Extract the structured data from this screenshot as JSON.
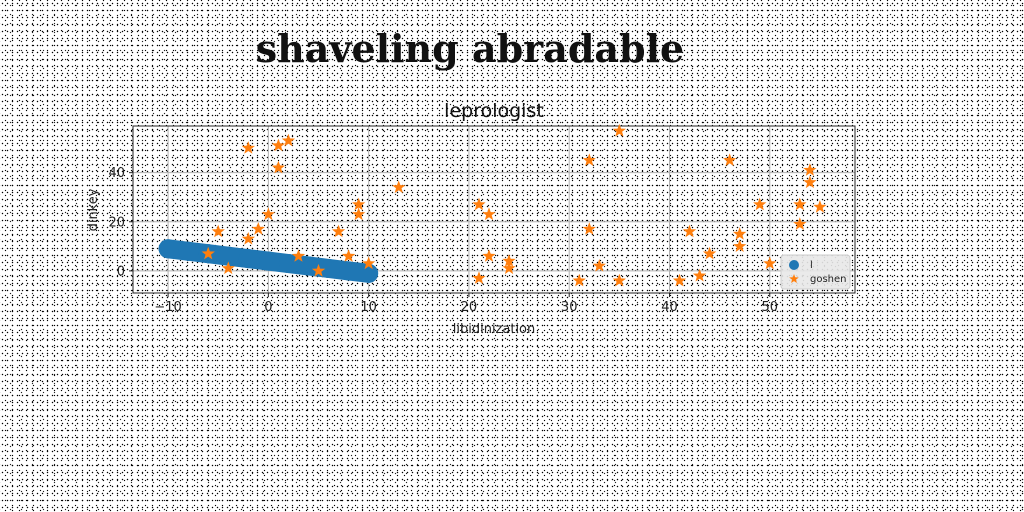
{
  "page": {
    "title": "shaveling abradable"
  },
  "chart_data": {
    "type": "scatter",
    "title": "leprologist",
    "xlabel": "libidinization",
    "ylabel": "dinkey",
    "xlim": [
      -13.5,
      58.5
    ],
    "ylim": [
      -9,
      59
    ],
    "xticks": [
      -10,
      0,
      10,
      20,
      30,
      40,
      50
    ],
    "yticks": [
      0,
      20,
      40
    ],
    "grid": true,
    "legend_position": "lower-right",
    "series": [
      {
        "name": "l",
        "marker": "circle-thick-line",
        "color": "#1f77b4",
        "x": [
          -10,
          -8,
          -6,
          -4,
          -2,
          0,
          2,
          4,
          6,
          8,
          10
        ],
        "y": [
          9,
          8,
          7,
          6,
          5,
          4,
          3,
          2,
          1,
          0,
          -1
        ]
      },
      {
        "name": "goshen",
        "marker": "star",
        "color": "#ff7f0e",
        "x": [
          -6,
          -5,
          -4,
          -2,
          -2,
          -1,
          0,
          1,
          1,
          2,
          3,
          5,
          7,
          8,
          9,
          9,
          10,
          13,
          21,
          21,
          22,
          22,
          24,
          24,
          31,
          32,
          32,
          33,
          35,
          35,
          41,
          42,
          43,
          44,
          46,
          47,
          47,
          49,
          50,
          53,
          53,
          54,
          54,
          55
        ],
        "y": [
          7,
          16,
          1,
          13,
          50,
          17,
          23,
          42,
          51,
          53,
          6,
          0,
          16,
          6,
          23,
          27,
          3,
          34,
          27,
          -3,
          23,
          6,
          1,
          4,
          -4,
          45,
          17,
          2,
          57,
          -4,
          -4,
          16,
          -2,
          7,
          45,
          10,
          15,
          27,
          3,
          19,
          27,
          36,
          41,
          26
        ]
      }
    ]
  }
}
